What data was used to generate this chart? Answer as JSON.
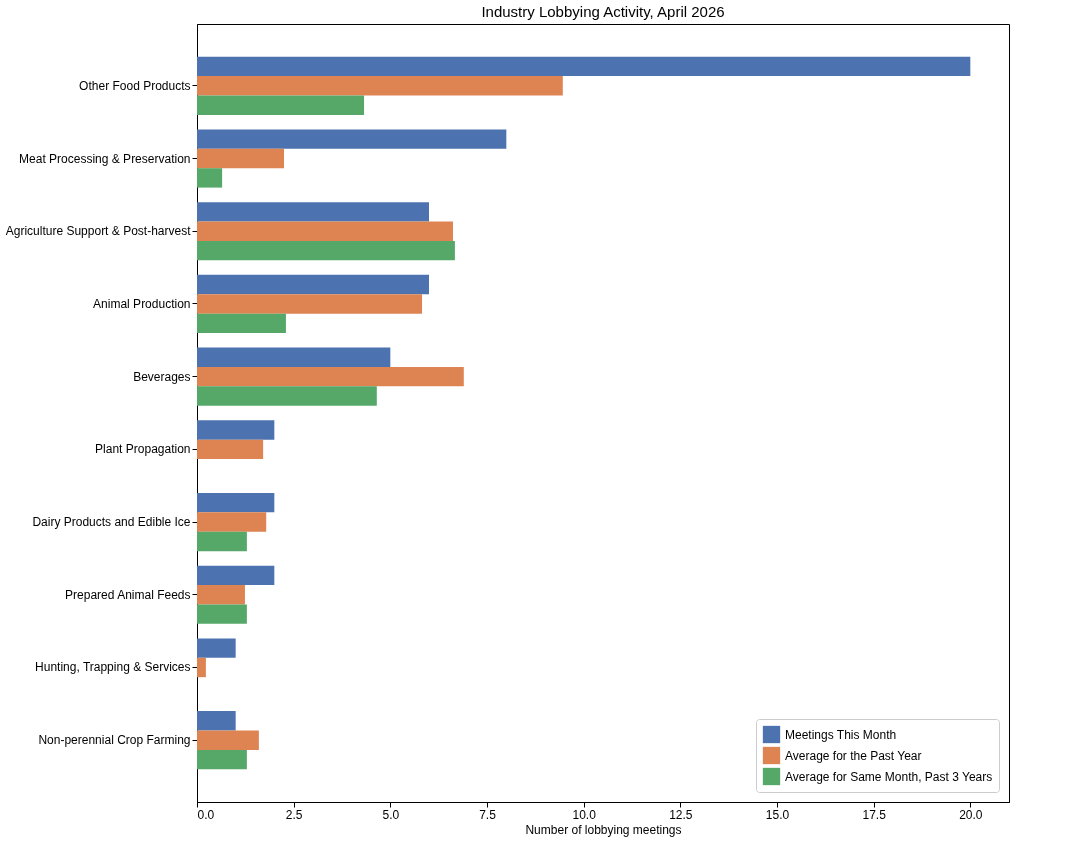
{
  "chart_data": {
    "type": "bar",
    "orientation": "horizontal",
    "title": "Industry Lobbying Activity, April 2026",
    "xlabel": "Number of lobbying meetings",
    "categories": [
      "Other Food Products",
      "Meat Processing & Preservation",
      "Agriculture Support & Post-harvest",
      "Animal Production",
      "Beverages",
      "Plant Propagation",
      "Dairy Products and Edible Ice",
      "Prepared Animal Feeds",
      "Hunting, Trapping & Services",
      "Non-perennial Crop Farming"
    ],
    "series": [
      {
        "name": "Meetings This Month",
        "color": "#4c72b0",
        "values": [
          20,
          8,
          6,
          6,
          5,
          2,
          2,
          2,
          1,
          1
        ]
      },
      {
        "name": "Average for the Past Year",
        "color": "#dd8452",
        "values": [
          9.46,
          2.25,
          6.62,
          5.82,
          6.9,
          1.71,
          1.79,
          1.24,
          0.23,
          1.6
        ]
      },
      {
        "name": "Average for Same Month, Past 3 Years",
        "color": "#55a868",
        "values": [
          4.32,
          0.65,
          6.67,
          2.3,
          4.65,
          0,
          1.29,
          1.29,
          0,
          1.29
        ]
      }
    ],
    "xlim": [
      0,
      21
    ],
    "xticks": [
      {
        "value": 0,
        "label": "0.0"
      },
      {
        "value": 2.5,
        "label": "2.5"
      },
      {
        "value": 5,
        "label": "5.0"
      },
      {
        "value": 7.5,
        "label": "7.5"
      },
      {
        "value": 10,
        "label": "10.0"
      },
      {
        "value": 12.5,
        "label": "12.5"
      },
      {
        "value": 15,
        "label": "15.0"
      },
      {
        "value": 17.5,
        "label": "17.5"
      },
      {
        "value": 20,
        "label": "20.0"
      }
    ],
    "legend": "bottom right",
    "grid": false
  }
}
